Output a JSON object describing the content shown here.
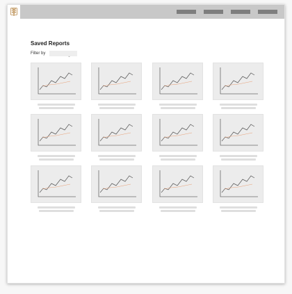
{
  "app": {
    "logo_icon": "wheat-icon",
    "nav_items": [
      "",
      "",
      "",
      ""
    ]
  },
  "page": {
    "title": "Saved Reports",
    "filter_label": "Filter by",
    "filter_value": ""
  },
  "reports": [
    {
      "name": "",
      "icon": "line-chart-thumbnail"
    },
    {
      "name": "",
      "icon": "line-chart-thumbnail"
    },
    {
      "name": "",
      "icon": "line-chart-thumbnail"
    },
    {
      "name": "",
      "icon": "line-chart-thumbnail"
    },
    {
      "name": "",
      "icon": "line-chart-thumbnail"
    },
    {
      "name": "",
      "icon": "line-chart-thumbnail"
    },
    {
      "name": "",
      "icon": "line-chart-thumbnail"
    },
    {
      "name": "",
      "icon": "line-chart-thumbnail"
    },
    {
      "name": "",
      "icon": "line-chart-thumbnail"
    },
    {
      "name": "",
      "icon": "line-chart-thumbnail"
    },
    {
      "name": "",
      "icon": "line-chart-thumbnail"
    },
    {
      "name": "",
      "icon": "line-chart-thumbnail"
    }
  ],
  "colors": {
    "topbar": "#c8c8c8",
    "nav": "#7e7e7e",
    "thumb_bg": "#ececec",
    "series_dark": "#555555",
    "series_accent": "#e8a27a",
    "logo": "#b8894a"
  }
}
